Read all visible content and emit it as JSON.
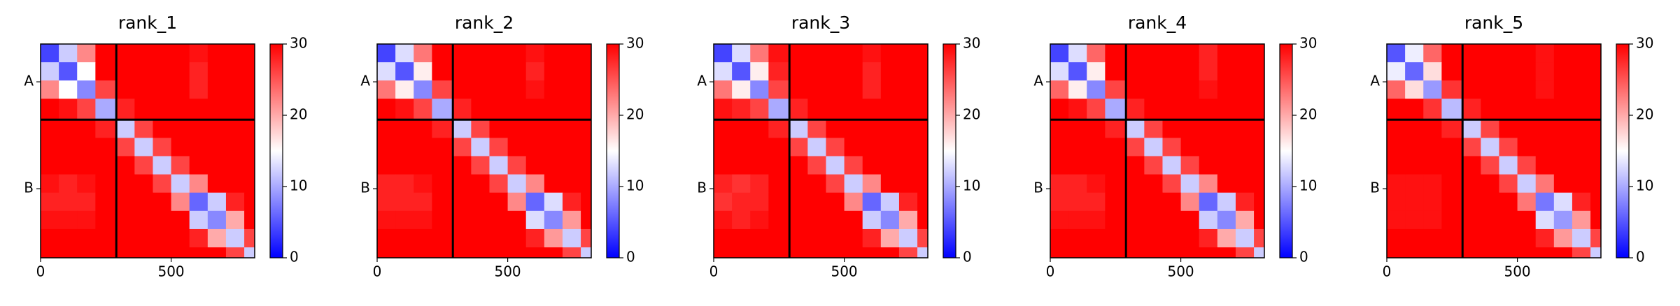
{
  "chart_data": [
    {
      "type": "heatmap",
      "title": "rank_1",
      "bins": [
        0,
        70,
        140,
        210,
        290,
        360,
        430,
        500,
        570,
        640,
        710,
        780,
        820
      ],
      "xlim": [
        0,
        820
      ],
      "xticks": [
        0,
        500
      ],
      "ylim": [
        820,
        0
      ],
      "yticks": [
        {
          "value": 145,
          "label": "A"
        },
        {
          "value": 555,
          "label": "B"
        }
      ],
      "chain_breaks": [
        290
      ],
      "colormap": [
        "#0000ff",
        "#ffffff",
        "#ff0000"
      ],
      "clim": [
        0,
        30
      ],
      "cticks": [
        0,
        10,
        20,
        30
      ],
      "matrix": [
        [
          4,
          12,
          22,
          30,
          30,
          30,
          30,
          30,
          29,
          30,
          30,
          30
        ],
        [
          12,
          5,
          15,
          30,
          30,
          30,
          30,
          30,
          28,
          30,
          30,
          30
        ],
        [
          22,
          15,
          8,
          26,
          30,
          30,
          30,
          30,
          28,
          30,
          30,
          30
        ],
        [
          30,
          29,
          26,
          10,
          28,
          30,
          30,
          30,
          30,
          30,
          30,
          30
        ],
        [
          30,
          30,
          30,
          28,
          12,
          26,
          30,
          30,
          30,
          30,
          30,
          30
        ],
        [
          30,
          30,
          30,
          30,
          26,
          12,
          26,
          30,
          30,
          30,
          30,
          30
        ],
        [
          30,
          30,
          30,
          30,
          30,
          26,
          12,
          26,
          30,
          30,
          30,
          30
        ],
        [
          29,
          28,
          29,
          30,
          30,
          30,
          26,
          12,
          22,
          30,
          30,
          30
        ],
        [
          28,
          28,
          28,
          30,
          30,
          30,
          30,
          22,
          6,
          12,
          28,
          30
        ],
        [
          29,
          29,
          29,
          30,
          30,
          30,
          30,
          30,
          12,
          8,
          20,
          30
        ],
        [
          30,
          30,
          30,
          30,
          30,
          30,
          30,
          30,
          28,
          20,
          12,
          26
        ],
        [
          30,
          30,
          30,
          30,
          30,
          30,
          30,
          30,
          30,
          30,
          26,
          12
        ]
      ]
    },
    {
      "type": "heatmap",
      "title": "rank_2",
      "bins": [
        0,
        70,
        140,
        210,
        290,
        360,
        430,
        500,
        570,
        640,
        710,
        780,
        820
      ],
      "xlim": [
        0,
        820
      ],
      "xticks": [
        0,
        500
      ],
      "ylim": [
        820,
        0
      ],
      "yticks": [
        {
          "value": 145,
          "label": "A"
        },
        {
          "value": 555,
          "label": "B"
        }
      ],
      "chain_breaks": [
        290
      ],
      "colormap": [
        "#0000ff",
        "#ffffff",
        "#ff0000"
      ],
      "clim": [
        0,
        30
      ],
      "cticks": [
        0,
        10,
        20,
        30
      ],
      "matrix": [
        [
          4,
          13,
          23,
          30,
          30,
          30,
          30,
          30,
          29,
          30,
          30,
          30
        ],
        [
          13,
          5,
          16,
          30,
          30,
          30,
          30,
          30,
          28,
          30,
          30,
          30
        ],
        [
          23,
          16,
          8,
          26,
          30,
          30,
          30,
          30,
          29,
          30,
          30,
          30
        ],
        [
          30,
          29,
          26,
          10,
          28,
          30,
          30,
          30,
          30,
          30,
          30,
          30
        ],
        [
          30,
          30,
          30,
          28,
          12,
          26,
          30,
          30,
          30,
          30,
          30,
          30
        ],
        [
          30,
          30,
          30,
          30,
          26,
          12,
          26,
          30,
          30,
          30,
          30,
          30
        ],
        [
          30,
          30,
          30,
          30,
          30,
          26,
          12,
          26,
          30,
          30,
          30,
          30
        ],
        [
          28,
          28,
          29,
          30,
          30,
          30,
          26,
          12,
          22,
          30,
          30,
          30
        ],
        [
          28,
          28,
          28,
          30,
          30,
          30,
          30,
          22,
          6,
          13,
          28,
          30
        ],
        [
          29,
          29,
          29,
          30,
          30,
          30,
          30,
          30,
          13,
          8,
          21,
          30
        ],
        [
          30,
          30,
          30,
          30,
          30,
          30,
          30,
          30,
          28,
          21,
          12,
          26
        ],
        [
          30,
          30,
          30,
          30,
          30,
          30,
          30,
          30,
          30,
          30,
          26,
          12
        ]
      ]
    },
    {
      "type": "heatmap",
      "title": "rank_3",
      "bins": [
        0,
        70,
        140,
        210,
        290,
        360,
        430,
        500,
        570,
        640,
        710,
        780,
        820
      ],
      "xlim": [
        0,
        820
      ],
      "xticks": [
        0,
        500
      ],
      "ylim": [
        820,
        0
      ],
      "yticks": [
        {
          "value": 145,
          "label": "A"
        },
        {
          "value": 555,
          "label": "B"
        }
      ],
      "chain_breaks": [
        290
      ],
      "colormap": [
        "#0000ff",
        "#ffffff",
        "#ff0000"
      ],
      "clim": [
        0,
        30
      ],
      "cticks": [
        0,
        10,
        20,
        30
      ],
      "matrix": [
        [
          4,
          13,
          23,
          29,
          30,
          30,
          30,
          30,
          29,
          30,
          30,
          30
        ],
        [
          13,
          5,
          16,
          28,
          30,
          30,
          30,
          30,
          28,
          30,
          30,
          30
        ],
        [
          23,
          16,
          8,
          26,
          30,
          30,
          30,
          30,
          28,
          30,
          30,
          30
        ],
        [
          29,
          28,
          26,
          10,
          28,
          30,
          30,
          30,
          30,
          30,
          30,
          30
        ],
        [
          30,
          30,
          30,
          28,
          12,
          26,
          30,
          30,
          30,
          30,
          30,
          30
        ],
        [
          30,
          30,
          30,
          30,
          26,
          12,
          26,
          30,
          30,
          30,
          30,
          30
        ],
        [
          30,
          30,
          30,
          30,
          30,
          26,
          12,
          26,
          30,
          30,
          30,
          30
        ],
        [
          28,
          27,
          28,
          30,
          30,
          30,
          26,
          12,
          22,
          30,
          30,
          30
        ],
        [
          27,
          28,
          28,
          30,
          30,
          30,
          30,
          22,
          6,
          12,
          28,
          30
        ],
        [
          29,
          28,
          29,
          30,
          30,
          30,
          30,
          30,
          12,
          8,
          20,
          30
        ],
        [
          30,
          30,
          30,
          30,
          30,
          30,
          30,
          30,
          28,
          20,
          12,
          26
        ],
        [
          30,
          30,
          30,
          30,
          30,
          30,
          30,
          30,
          30,
          30,
          26,
          12
        ]
      ]
    },
    {
      "type": "heatmap",
      "title": "rank_4",
      "bins": [
        0,
        70,
        140,
        210,
        290,
        360,
        430,
        500,
        570,
        640,
        710,
        780,
        820
      ],
      "xlim": [
        0,
        820
      ],
      "xticks": [
        0,
        500
      ],
      "ylim": [
        820,
        0
      ],
      "yticks": [
        {
          "value": 145,
          "label": "A"
        },
        {
          "value": 555,
          "label": "B"
        }
      ],
      "chain_breaks": [
        290
      ],
      "colormap": [
        "#0000ff",
        "#ffffff",
        "#ff0000"
      ],
      "clim": [
        0,
        30
      ],
      "cticks": [
        0,
        10,
        20,
        30
      ],
      "matrix": [
        [
          4,
          13,
          24,
          30,
          30,
          30,
          30,
          30,
          28,
          30,
          30,
          30
        ],
        [
          13,
          5,
          16,
          30,
          30,
          30,
          30,
          30,
          28,
          30,
          30,
          30
        ],
        [
          24,
          16,
          8,
          26,
          30,
          30,
          30,
          30,
          29,
          30,
          30,
          30
        ],
        [
          30,
          29,
          26,
          10,
          28,
          30,
          30,
          30,
          30,
          30,
          30,
          30
        ],
        [
          30,
          30,
          30,
          28,
          12,
          26,
          30,
          30,
          30,
          30,
          30,
          30
        ],
        [
          30,
          30,
          30,
          30,
          26,
          12,
          26,
          30,
          30,
          30,
          30,
          30
        ],
        [
          30,
          30,
          30,
          30,
          30,
          26,
          12,
          26,
          30,
          30,
          30,
          30
        ],
        [
          28,
          28,
          29,
          30,
          30,
          30,
          26,
          12,
          22,
          30,
          30,
          30
        ],
        [
          28,
          28,
          28,
          30,
          30,
          30,
          30,
          22,
          6,
          12,
          28,
          30
        ],
        [
          29,
          29,
          29,
          30,
          30,
          30,
          30,
          30,
          12,
          8,
          20,
          30
        ],
        [
          30,
          30,
          30,
          30,
          30,
          30,
          30,
          30,
          28,
          20,
          12,
          26
        ],
        [
          30,
          30,
          30,
          30,
          30,
          30,
          30,
          30,
          30,
          30,
          26,
          12
        ]
      ]
    },
    {
      "type": "heatmap",
      "title": "rank_5",
      "bins": [
        0,
        70,
        140,
        210,
        290,
        360,
        430,
        500,
        570,
        640,
        710,
        780,
        820
      ],
      "xlim": [
        0,
        820
      ],
      "xticks": [
        0,
        500
      ],
      "ylim": [
        820,
        0
      ],
      "yticks": [
        {
          "value": 145,
          "label": "A"
        },
        {
          "value": 555,
          "label": "B"
        }
      ],
      "chain_breaks": [
        290
      ],
      "colormap": [
        "#0000ff",
        "#ffffff",
        "#ff0000"
      ],
      "clim": [
        0,
        30
      ],
      "cticks": [
        0,
        10,
        20,
        30
      ],
      "matrix": [
        [
          5,
          14,
          24,
          30,
          30,
          30,
          30,
          30,
          29,
          30,
          30,
          30
        ],
        [
          14,
          6,
          17,
          30,
          30,
          30,
          30,
          30,
          29,
          30,
          30,
          30
        ],
        [
          24,
          17,
          9,
          27,
          30,
          30,
          30,
          30,
          29,
          30,
          30,
          30
        ],
        [
          30,
          30,
          27,
          11,
          28,
          30,
          30,
          30,
          30,
          30,
          30,
          30
        ],
        [
          30,
          30,
          30,
          28,
          12,
          26,
          30,
          30,
          30,
          30,
          30,
          30
        ],
        [
          30,
          30,
          30,
          30,
          26,
          12,
          26,
          30,
          30,
          30,
          30,
          30
        ],
        [
          30,
          30,
          30,
          30,
          30,
          26,
          12,
          26,
          30,
          30,
          30,
          30
        ],
        [
          29,
          29,
          29,
          30,
          30,
          30,
          26,
          12,
          23,
          30,
          30,
          30
        ],
        [
          29,
          29,
          29,
          30,
          30,
          30,
          30,
          23,
          7,
          13,
          28,
          30
        ],
        [
          29,
          29,
          29,
          30,
          30,
          30,
          30,
          30,
          13,
          9,
          21,
          30
        ],
        [
          30,
          30,
          30,
          30,
          30,
          30,
          30,
          30,
          28,
          21,
          12,
          26
        ],
        [
          30,
          30,
          30,
          30,
          30,
          30,
          30,
          30,
          30,
          30,
          26,
          12
        ]
      ]
    }
  ]
}
